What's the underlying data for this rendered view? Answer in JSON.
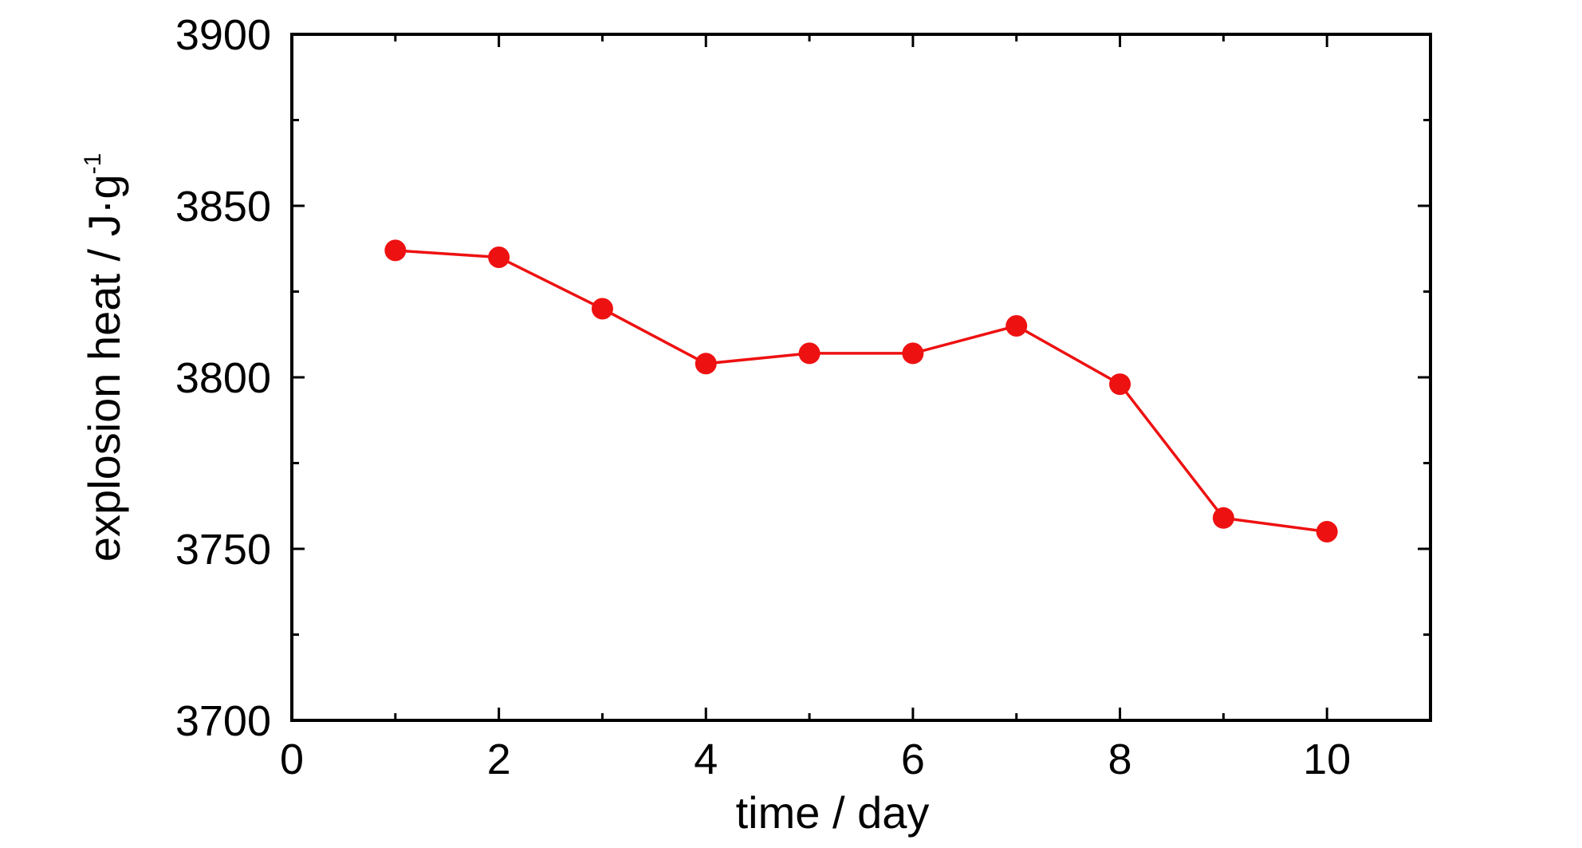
{
  "chart_data": {
    "type": "line",
    "xlabel": "time / day",
    "ylabel_main": "explosion heat / J·g",
    "ylabel_superscript": "-1",
    "xlim": [
      0,
      11
    ],
    "ylim": [
      3700,
      3900
    ],
    "x_ticks": [
      0,
      2,
      4,
      6,
      8,
      10
    ],
    "y_ticks": [
      3700,
      3750,
      3800,
      3850,
      3900
    ],
    "grid": false,
    "series": [
      {
        "color": "#ee1111",
        "marker": "circle",
        "x": [
          1,
          2,
          3,
          4,
          5,
          6,
          7,
          8,
          9,
          10
        ],
        "y": [
          3837,
          3835,
          3820,
          3804,
          3807,
          3807,
          3815,
          3798,
          3759,
          3755
        ]
      }
    ]
  }
}
